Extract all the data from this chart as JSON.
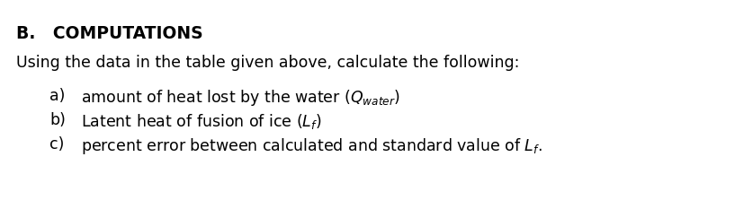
{
  "background_color": "#ffffff",
  "title": "B.   COMPUTATIONS",
  "subtitle": "Using the data in the table given above, calculate the following:",
  "line_a_label": "a)",
  "line_a_text": "amount of heat lost by the water ($Q_{water}$)",
  "line_b_label": "b)",
  "line_b_text": "Latent heat of fusion of ice ($L_{f}$)",
  "line_c_label": "c)",
  "line_c_text": "percent error between calculated and standard value of $L_{f}$.",
  "title_fontsize": 13.5,
  "body_fontsize": 12.5,
  "title_color": "#000000",
  "body_color": "#000000"
}
